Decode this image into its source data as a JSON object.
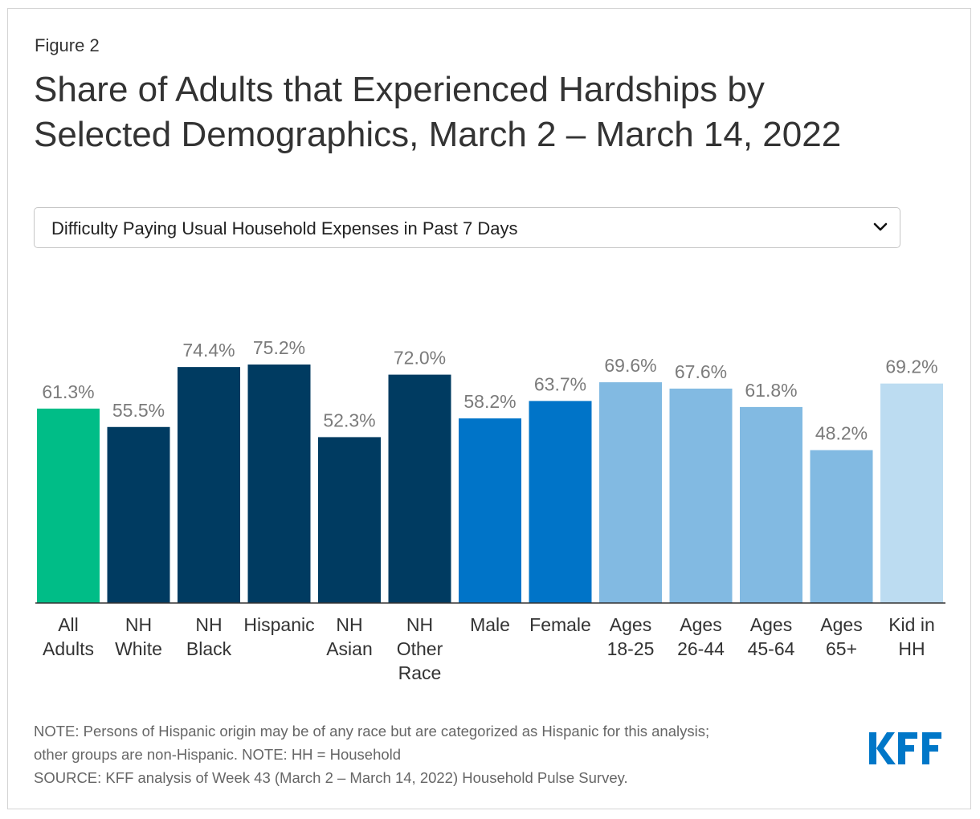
{
  "figure_label": "Figure 2",
  "title_line1": "Share of Adults that Experienced Hardships by",
  "title_line2": "Selected Demographics, March 2 – March 14, 2022",
  "dropdown": {
    "selected": "Difficulty Paying Usual Household Expenses in Past 7 Days",
    "icon": "chevron-down-icon"
  },
  "notes": {
    "line1": "NOTE: Persons of Hispanic origin may be of any race but are categorized as Hispanic for this analysis;",
    "line2": "other groups are non-Hispanic. NOTE: HH = Household",
    "line3": "SOURCE: KFF analysis of Week 43 (March 2 – March 14, 2022) Household Pulse Survey."
  },
  "logo": {
    "text": "KFF",
    "color": "#0077c8"
  },
  "chart_data": {
    "type": "bar",
    "title": "Share of Adults that Experienced Hardships by Selected Demographics, March 2 – March 14, 2022",
    "xlabel": "",
    "ylabel": "",
    "ylim": [
      0,
      80
    ],
    "grid": false,
    "categories": [
      [
        "All",
        "Adults"
      ],
      [
        "NH",
        "White"
      ],
      [
        "NH",
        "Black"
      ],
      [
        "Hispanic"
      ],
      [
        "NH",
        "Asian"
      ],
      [
        "NH",
        "Other",
        "Race"
      ],
      [
        "Male"
      ],
      [
        "Female"
      ],
      [
        "Ages",
        "18-25"
      ],
      [
        "Ages",
        "26-44"
      ],
      [
        "Ages",
        "45-64"
      ],
      [
        "Ages",
        "65+"
      ],
      [
        "Kid in",
        "HH"
      ]
    ],
    "values": [
      61.3,
      55.5,
      74.4,
      75.2,
      52.3,
      72.0,
      58.2,
      63.7,
      69.6,
      67.6,
      61.8,
      48.2,
      69.2
    ],
    "value_labels": [
      "61.3%",
      "55.5%",
      "74.4%",
      "75.2%",
      "52.3%",
      "72.0%",
      "58.2%",
      "63.7%",
      "69.6%",
      "67.6%",
      "61.8%",
      "48.2%",
      "69.2%"
    ],
    "colors": [
      "#00bd87",
      "#003b61",
      "#003b61",
      "#003b61",
      "#003b61",
      "#003b61",
      "#0074c8",
      "#0074c8",
      "#82bae2",
      "#82bae2",
      "#82bae2",
      "#82bae2",
      "#bcdcf1"
    ],
    "label_color": "#7b7b7b",
    "axis_color": "#333333"
  }
}
